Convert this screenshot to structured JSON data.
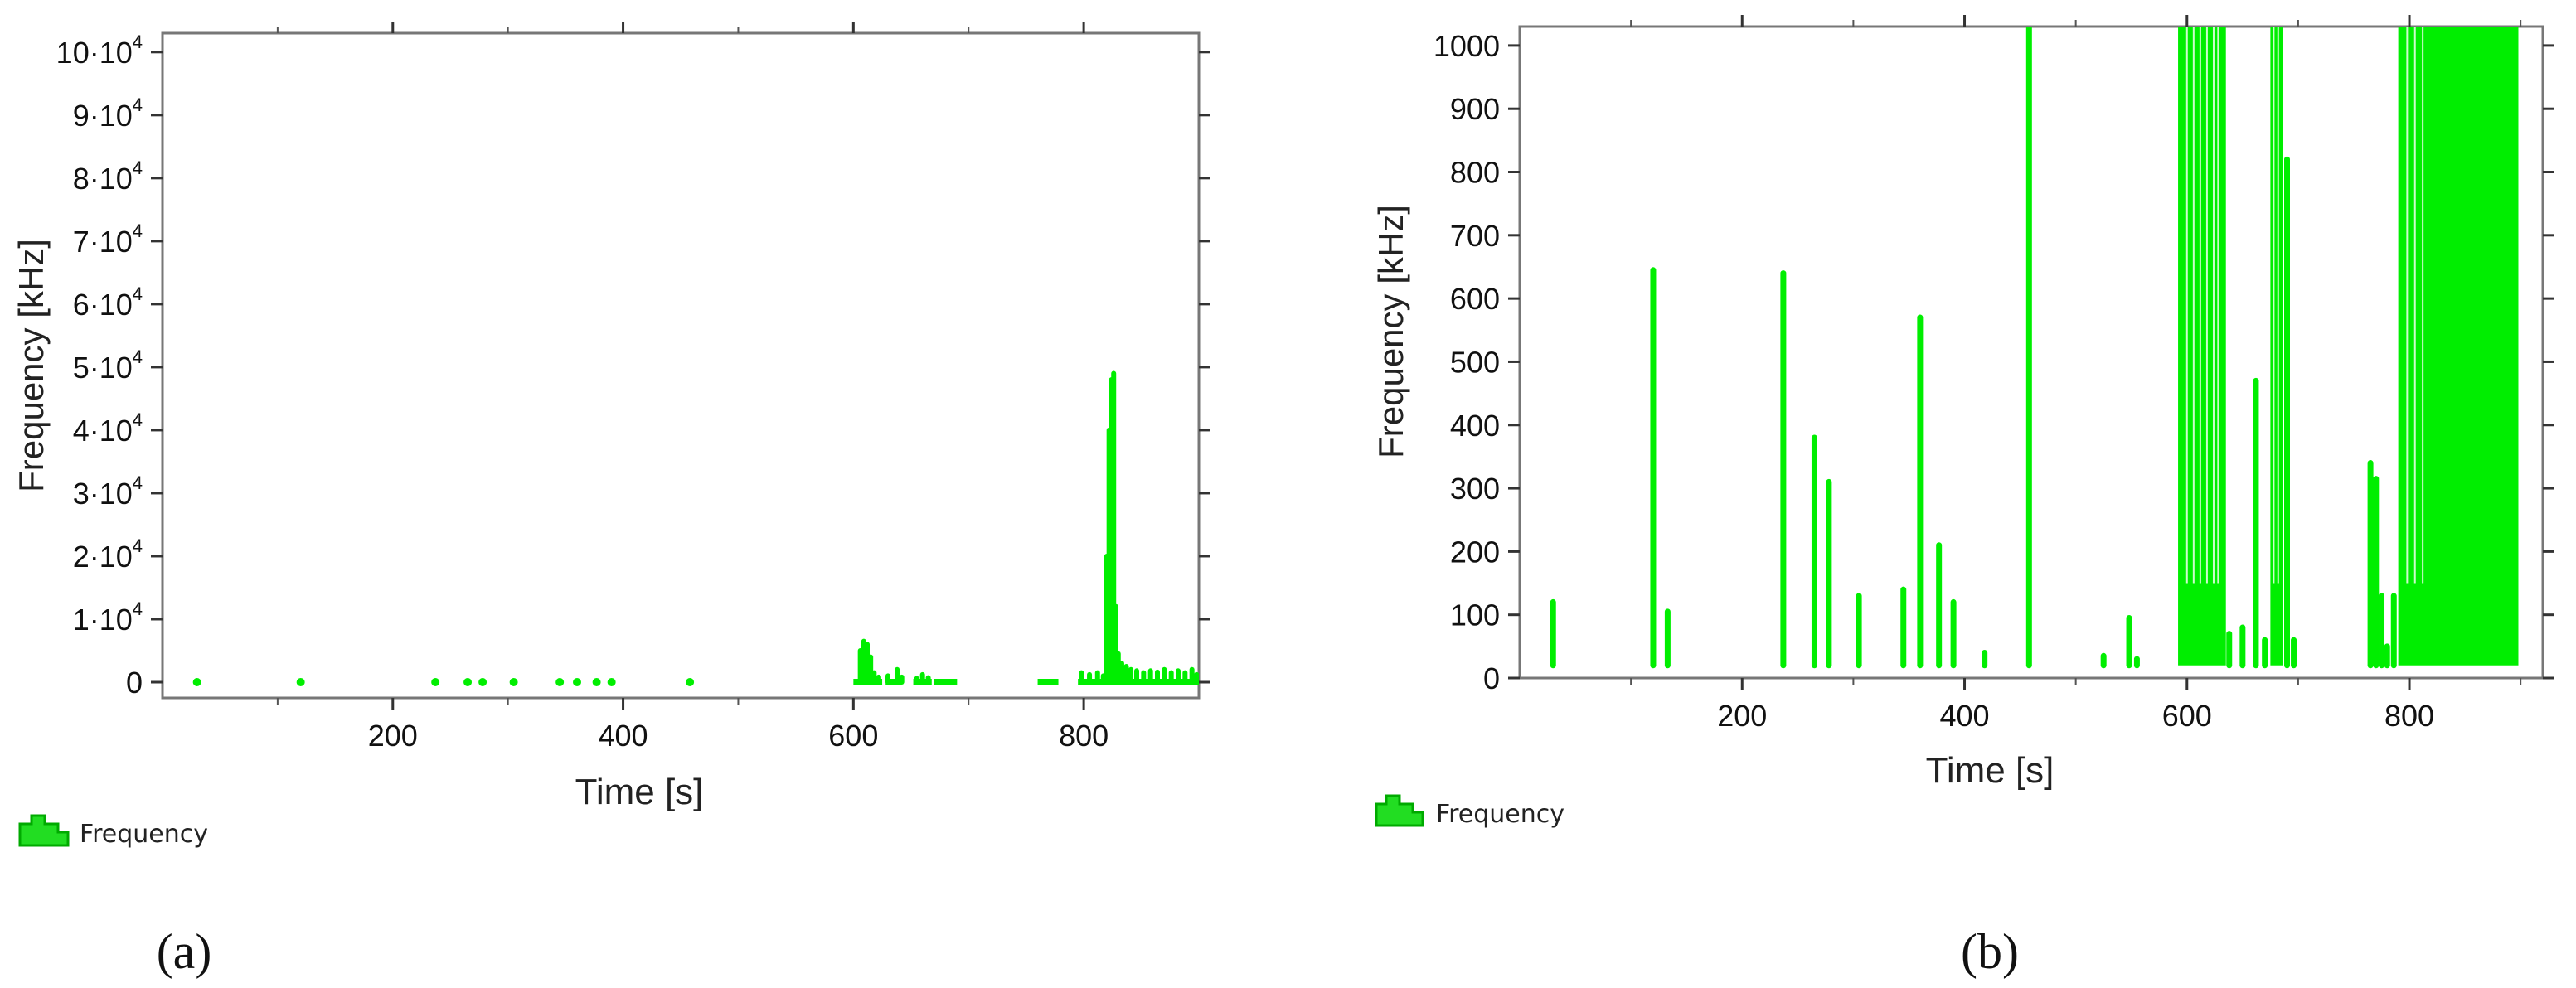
{
  "chart_data": [
    {
      "panel_label": "(a)",
      "type": "scatter",
      "xlabel": "Time [s]",
      "ylabel": "Frequency [kHz]",
      "xlim": [
        0,
        900
      ],
      "ylim": [
        -2500,
        103000
      ],
      "x_ticks": [
        200,
        400,
        600,
        800
      ],
      "y_ticks": [
        {
          "value": 0,
          "base": "0",
          "exp": ""
        },
        {
          "value": 10000,
          "base": "1·10",
          "exp": "4"
        },
        {
          "value": 20000,
          "base": "2·10",
          "exp": "4"
        },
        {
          "value": 30000,
          "base": "3·10",
          "exp": "4"
        },
        {
          "value": 40000,
          "base": "4·10",
          "exp": "4"
        },
        {
          "value": 50000,
          "base": "5·10",
          "exp": "4"
        },
        {
          "value": 60000,
          "base": "6·10",
          "exp": "4"
        },
        {
          "value": 70000,
          "base": "7·10",
          "exp": "4"
        },
        {
          "value": 80000,
          "base": "8·10",
          "exp": "4"
        },
        {
          "value": 90000,
          "base": "9·10",
          "exp": "4"
        },
        {
          "value": 100000,
          "base": "10·10",
          "exp": "4"
        }
      ],
      "grid": false,
      "legend": {
        "position": "bottom-left",
        "entries": [
          "Frequency"
        ]
      },
      "color": "#00ee00",
      "series": [
        {
          "name": "Frequency",
          "spikes": [
            {
              "x": 606,
              "y": 5000
            },
            {
              "x": 609,
              "y": 6500
            },
            {
              "x": 612,
              "y": 6000
            },
            {
              "x": 615,
              "y": 4000
            },
            {
              "x": 618,
              "y": 1500
            },
            {
              "x": 622,
              "y": 800
            },
            {
              "x": 630,
              "y": 1000
            },
            {
              "x": 638,
              "y": 2000
            },
            {
              "x": 642,
              "y": 800
            },
            {
              "x": 655,
              "y": 600
            },
            {
              "x": 660,
              "y": 1200
            },
            {
              "x": 665,
              "y": 700
            },
            {
              "x": 798,
              "y": 1500
            },
            {
              "x": 805,
              "y": 1200
            },
            {
              "x": 812,
              "y": 1500
            },
            {
              "x": 817,
              "y": 1000
            },
            {
              "x": 820,
              "y": 20000
            },
            {
              "x": 822,
              "y": 40000
            },
            {
              "x": 824,
              "y": 48000
            },
            {
              "x": 826,
              "y": 49000
            },
            {
              "x": 828,
              "y": 12000
            },
            {
              "x": 830,
              "y": 4500
            },
            {
              "x": 833,
              "y": 3000
            },
            {
              "x": 837,
              "y": 2500
            },
            {
              "x": 841,
              "y": 2000
            },
            {
              "x": 846,
              "y": 1800
            },
            {
              "x": 852,
              "y": 1500
            },
            {
              "x": 858,
              "y": 1800
            },
            {
              "x": 864,
              "y": 1600
            },
            {
              "x": 870,
              "y": 2000
            },
            {
              "x": 876,
              "y": 1500
            },
            {
              "x": 882,
              "y": 1800
            },
            {
              "x": 888,
              "y": 1500
            },
            {
              "x": 894,
              "y": 2000
            },
            {
              "x": 898,
              "y": 1200
            }
          ],
          "baseline_segments": [
            [
              600,
              625
            ],
            [
              628,
              642
            ],
            [
              652,
              668
            ],
            [
              670,
              690
            ],
            [
              760,
              778
            ],
            [
              795,
              900
            ]
          ],
          "points": [
            {
              "x": 30,
              "y": 0
            },
            {
              "x": 120,
              "y": 0
            },
            {
              "x": 237,
              "y": 0
            },
            {
              "x": 265,
              "y": 0
            },
            {
              "x": 278,
              "y": 0
            },
            {
              "x": 305,
              "y": 0
            },
            {
              "x": 345,
              "y": 0
            },
            {
              "x": 360,
              "y": 0
            },
            {
              "x": 377,
              "y": 0
            },
            {
              "x": 390,
              "y": 0
            },
            {
              "x": 458,
              "y": 0
            }
          ]
        }
      ]
    },
    {
      "panel_label": "(b)",
      "type": "scatter",
      "xlabel": "Time [s]",
      "ylabel": "Frequency [kHz]",
      "xlim": [
        0,
        920
      ],
      "ylim": [
        0,
        1030
      ],
      "x_ticks": [
        200,
        400,
        600,
        800
      ],
      "y_ticks": [
        {
          "value": 0,
          "base": "0",
          "exp": ""
        },
        {
          "value": 100,
          "base": "100",
          "exp": ""
        },
        {
          "value": 200,
          "base": "200",
          "exp": ""
        },
        {
          "value": 300,
          "base": "300",
          "exp": ""
        },
        {
          "value": 400,
          "base": "400",
          "exp": ""
        },
        {
          "value": 500,
          "base": "500",
          "exp": ""
        },
        {
          "value": 600,
          "base": "600",
          "exp": ""
        },
        {
          "value": 700,
          "base": "700",
          "exp": ""
        },
        {
          "value": 800,
          "base": "800",
          "exp": ""
        },
        {
          "value": 900,
          "base": "900",
          "exp": ""
        },
        {
          "value": 1000,
          "base": "1000",
          "exp": ""
        }
      ],
      "grid": false,
      "legend": {
        "position": "bottom-left",
        "entries": [
          "Frequency"
        ]
      },
      "color": "#00ee00",
      "series": [
        {
          "name": "Frequency",
          "baseline": 20,
          "spikes": [
            {
              "x": 30,
              "y": 120
            },
            {
              "x": 120,
              "y": 645
            },
            {
              "x": 133,
              "y": 105
            },
            {
              "x": 237,
              "y": 640
            },
            {
              "x": 265,
              "y": 380
            },
            {
              "x": 278,
              "y": 310
            },
            {
              "x": 305,
              "y": 130
            },
            {
              "x": 345,
              "y": 140
            },
            {
              "x": 360,
              "y": 570
            },
            {
              "x": 377,
              "y": 210
            },
            {
              "x": 390,
              "y": 120
            },
            {
              "x": 418,
              "y": 40
            },
            {
              "x": 458,
              "y": 1030
            },
            {
              "x": 525,
              "y": 35
            },
            {
              "x": 548,
              "y": 95
            },
            {
              "x": 555,
              "y": 30
            },
            {
              "x": 638,
              "y": 70
            },
            {
              "x": 650,
              "y": 80
            },
            {
              "x": 662,
              "y": 470
            },
            {
              "x": 670,
              "y": 60
            },
            {
              "x": 690,
              "y": 820
            },
            {
              "x": 696,
              "y": 60
            },
            {
              "x": 765,
              "y": 340
            },
            {
              "x": 770,
              "y": 315
            },
            {
              "x": 775,
              "y": 130
            },
            {
              "x": 780,
              "y": 50
            },
            {
              "x": 786,
              "y": 130
            }
          ],
          "bands": [
            {
              "x0": 592,
              "x1": 635,
              "y": 1030
            },
            {
              "x0": 675,
              "x1": 686,
              "y": 1030
            },
            {
              "x0": 790,
              "x1": 898,
              "y": 1030
            }
          ],
          "band_gaps": [
            600,
            606,
            612,
            618,
            624,
            628,
            678,
            682,
            798,
            805,
            812
          ]
        }
      ]
    }
  ]
}
